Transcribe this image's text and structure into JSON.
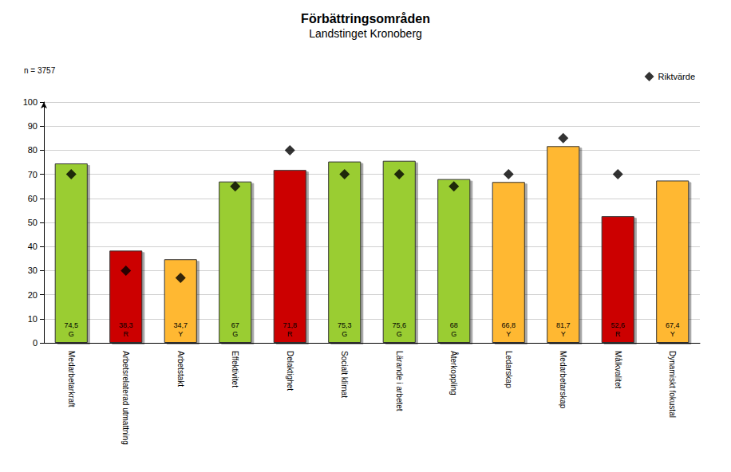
{
  "chart_data": {
    "type": "bar",
    "title": "Förbättringsområden",
    "subtitle": "Landstinget Kronoberg",
    "annotations": [
      "n = 3757"
    ],
    "categories": [
      "Medarbetarkraft",
      "Arbetsrelaterad utmattning",
      "Arbetstakt",
      "Effektivitet",
      "Delaktighet",
      "Socialt klimat",
      "Lärande i arbetet",
      "Återkoppling",
      "Ledarskap",
      "Medarbetarskap",
      "Målkvalitet",
      "Dynamiskt fokustal"
    ],
    "values": [
      74.5,
      38.3,
      34.7,
      67,
      71.8,
      75.3,
      75.6,
      68,
      66.8,
      81.7,
      52.6,
      67.4
    ],
    "value_labels": [
      "74,5",
      "38,3",
      "34,7",
      "67",
      "71,8",
      "75,3",
      "75,6",
      "68",
      "66,8",
      "81,7",
      "52,6",
      "67,4"
    ],
    "grades": [
      "G",
      "R",
      "Y",
      "G",
      "R",
      "G",
      "G",
      "G",
      "Y",
      "Y",
      "R",
      "Y"
    ],
    "colors": [
      "#9acd32",
      "#cc0000",
      "#ffb833",
      "#9acd32",
      "#cc0000",
      "#9acd32",
      "#9acd32",
      "#9acd32",
      "#ffb833",
      "#ffb833",
      "#cc0000",
      "#ffb833"
    ],
    "series": [
      {
        "name": "Riktvärde",
        "type": "scatter",
        "marker": "diamond",
        "color": "#000000",
        "values": [
          70,
          30,
          27,
          65,
          80,
          70,
          70,
          65,
          70,
          85,
          70,
          null
        ]
      }
    ],
    "data_labels": true,
    "legend": "top-right",
    "ylim": [
      0,
      100
    ],
    "yticks": [
      0,
      10,
      20,
      30,
      40,
      50,
      60,
      70,
      80,
      90,
      100
    ],
    "grid": true
  }
}
